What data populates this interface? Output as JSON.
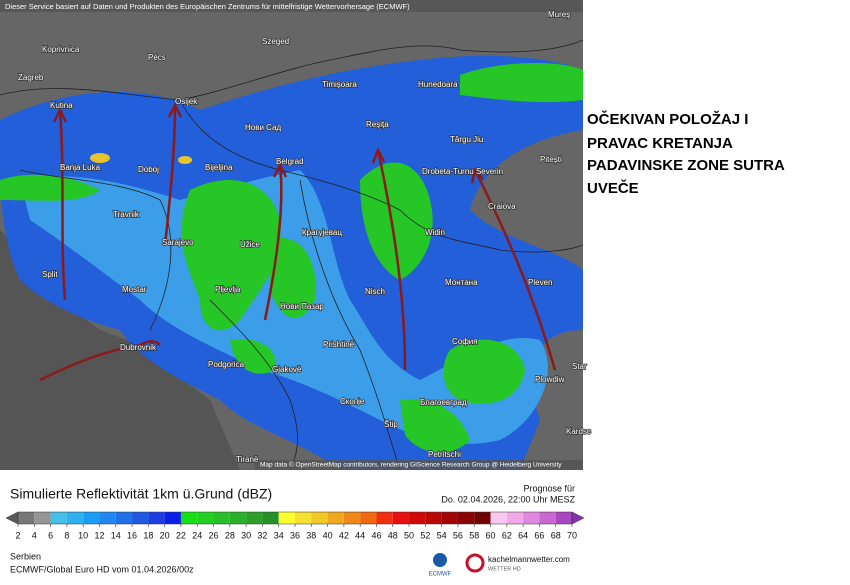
{
  "header": {
    "attribution": "Dieser Service basiert auf Daten und Produkten des Europäischen Zentrums für mittelfristige Wettervorhersage (ECMWF)"
  },
  "map": {
    "credit": "Map data © OpenStreetMap contributors, rendering GIScience Research Group @ Heidelberg University",
    "places": [
      "Mureș",
      "Szeged",
      "Pécs",
      "Koprivnica",
      "Zagreb",
      "Kutina",
      "Osijek",
      "Нови Сад",
      "Timișoara",
      "Hunedoara",
      "Reșița",
      "Târgu Jiu",
      "Pitești",
      "Banja Luka",
      "Doboj",
      "Bijeljina",
      "Belgrad",
      "Drobeta-Turnu Severin",
      "Craiova",
      "Travnik",
      "Sarajevo",
      "Užice",
      "Крагуjевац",
      "Widin",
      "Split",
      "Mostar",
      "Pljevlja",
      "Нови Пазар",
      "Nisch",
      "Монтана",
      "Pleven",
      "Dubrovnik",
      "Podgorica",
      "Prishtinë",
      "София",
      "Gjakovë",
      "Plowdiw",
      "Скопје",
      "Благоевград",
      "Štip",
      "Petritschi",
      "Tiranë",
      "Kardsc",
      "Star"
    ]
  },
  "annotation": {
    "lines": [
      "OČEKIVAN POLOŽAJ I",
      "PRAVAC KRETANJA",
      "PADAVINSKE ZONE SUTRA",
      "UVEČE"
    ]
  },
  "legend": {
    "title": "Simulierte Reflektivität 1km ü.Grund (dBZ)",
    "forecast_label": "Prognose für",
    "forecast_time": "Do. 02.04.2026, 22:00 Uhr MESZ",
    "region": "Serbien",
    "model_run": "ECMWF/Global Euro HD vom  01.04.2026/00z",
    "ticks": [
      2,
      4,
      6,
      8,
      10,
      12,
      14,
      16,
      18,
      20,
      22,
      24,
      26,
      28,
      30,
      32,
      34,
      36,
      38,
      40,
      42,
      44,
      46,
      48,
      50,
      52,
      54,
      56,
      58,
      60,
      62,
      64,
      66,
      68,
      70
    ],
    "colors": [
      "#5a5a5a",
      "#777777",
      "#959595",
      "#42c0e8",
      "#2fb0f0",
      "#1c9cf2",
      "#1e88f0",
      "#2070e8",
      "#2058e0",
      "#1c3ee0",
      "#0a1ee8",
      "#18e018",
      "#22d022",
      "#28c028",
      "#2ab02a",
      "#2aa02a",
      "#289028",
      "#ffff30",
      "#f8e030",
      "#f0c828",
      "#f0a820",
      "#f08818",
      "#f06810",
      "#f03010",
      "#e81010",
      "#d00a0a",
      "#b80808",
      "#a00606",
      "#880404",
      "#700202",
      "#f8c8f0",
      "#f0a8e8",
      "#e088e0",
      "#c868d0",
      "#a848c0",
      "#8a30b0"
    ]
  },
  "logos": {
    "ecmwf": "ECMWF",
    "site": "kachelmannwetter.com",
    "site_sub": "WETTER HD"
  }
}
